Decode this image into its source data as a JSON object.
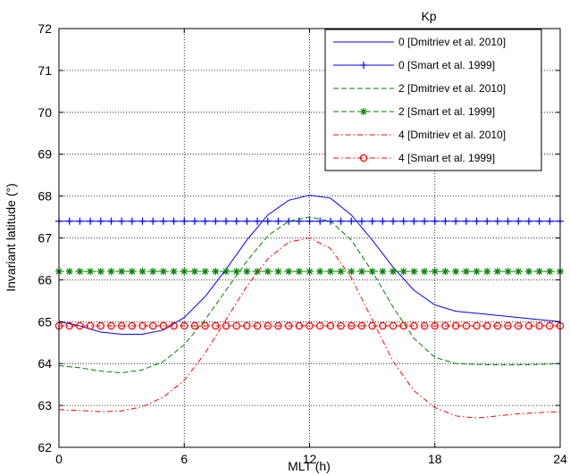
{
  "chart_data": {
    "type": "line",
    "title": "",
    "xlabel": "MLT (h)",
    "ylabel": "Invariant latitude (°)",
    "xlim": [
      0,
      24
    ],
    "ylim": [
      62,
      72
    ],
    "xticks": [
      0,
      6,
      12,
      18,
      24
    ],
    "yticks": [
      62,
      63,
      64,
      65,
      66,
      67,
      68,
      69,
      70,
      71,
      72
    ],
    "grid": true,
    "legend_title": "Kp",
    "legend_position": "top-right",
    "series": [
      {
        "name": "0 [Dmitriev et al. 2010]",
        "color": "#0000ff",
        "dash": "solid",
        "marker": "none",
        "x": [
          0,
          1,
          2,
          3,
          4,
          5,
          6,
          7,
          8,
          9,
          10,
          11,
          12,
          13,
          14,
          15,
          16,
          17,
          18,
          19,
          20,
          21,
          22,
          23,
          24
        ],
        "y": [
          65.0,
          64.9,
          64.75,
          64.7,
          64.7,
          64.8,
          65.1,
          65.6,
          66.25,
          66.95,
          67.55,
          67.9,
          68.02,
          67.95,
          67.55,
          66.95,
          66.3,
          65.75,
          65.4,
          65.25,
          65.2,
          65.15,
          65.1,
          65.05,
          65.0
        ]
      },
      {
        "name": "0 [Smart et al. 1999]",
        "color": "#0000ff",
        "dash": "solid",
        "marker": "plus",
        "x": [
          0,
          24
        ],
        "y": [
          67.4,
          67.4
        ]
      },
      {
        "name": "2 [Dmitriev et al. 2010]",
        "color": "#008000",
        "dash": "dashed",
        "marker": "none",
        "x": [
          0,
          1,
          2,
          3,
          4,
          5,
          6,
          7,
          8,
          9,
          10,
          11,
          12,
          13,
          14,
          15,
          16,
          17,
          18,
          19,
          20,
          21,
          22,
          23,
          24
        ],
        "y": [
          63.95,
          63.9,
          63.82,
          63.78,
          63.85,
          64.05,
          64.45,
          65.05,
          65.75,
          66.45,
          67.05,
          67.4,
          67.5,
          67.4,
          66.95,
          66.2,
          65.35,
          64.6,
          64.15,
          64.0,
          63.98,
          63.97,
          63.97,
          63.98,
          64.0
        ]
      },
      {
        "name": "2 [Smart et al. 1999]",
        "color": "#008000",
        "dash": "dashed",
        "marker": "asterisk",
        "x": [
          0,
          24
        ],
        "y": [
          66.2,
          66.2
        ]
      },
      {
        "name": "4 [Dmitriev et al. 2010]",
        "color": "#ff0000",
        "dash": "dashdot",
        "marker": "none",
        "x": [
          0,
          1,
          2,
          3,
          4,
          5,
          6,
          7,
          8,
          9,
          10,
          11,
          12,
          13,
          14,
          15,
          16,
          17,
          18,
          19,
          20,
          21,
          22,
          23,
          24
        ],
        "y": [
          62.9,
          62.88,
          62.85,
          62.87,
          62.97,
          63.2,
          63.6,
          64.25,
          65.05,
          65.85,
          66.5,
          66.9,
          67.0,
          66.75,
          66.05,
          65.05,
          64.05,
          63.35,
          62.95,
          62.75,
          62.7,
          62.75,
          62.8,
          62.83,
          62.85
        ]
      },
      {
        "name": "4 [Smart et al. 1999]",
        "color": "#ff0000",
        "dash": "dashdot",
        "marker": "circle",
        "x": [
          0,
          24
        ],
        "y": [
          64.9,
          64.9
        ]
      }
    ]
  }
}
